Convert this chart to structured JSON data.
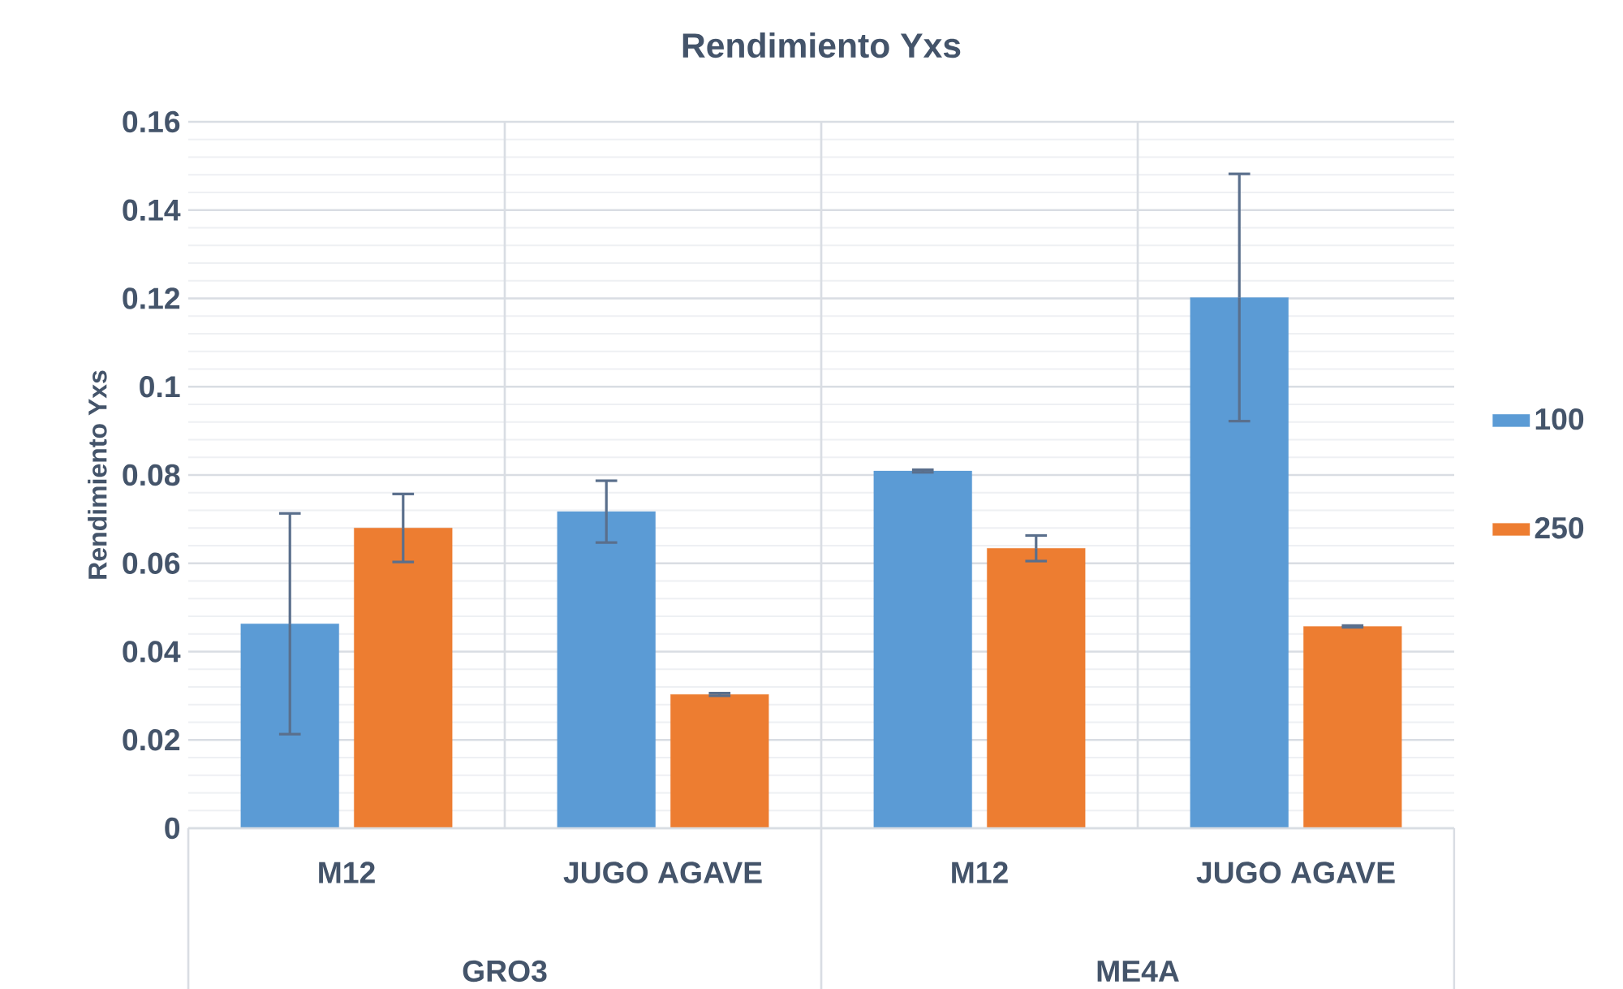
{
  "chart_data": {
    "type": "bar",
    "title": "Rendimiento Yxs",
    "ylabel": "Rendimiento Yxs",
    "categories": [
      "M12",
      "JUGO AGAVE",
      "M12",
      "JUGO AGAVE"
    ],
    "annotations": [
      "GRO3",
      "ME4A"
    ],
    "series": [
      {
        "name": "100",
        "color": "#5b9bd5",
        "values": [
          0.0463,
          0.0717,
          0.0809,
          0.1202
        ],
        "errors": [
          0.025,
          0.007,
          0.0003,
          0.028
        ]
      },
      {
        "name": "250",
        "color": "#ed7d31",
        "values": [
          0.068,
          0.0303,
          0.0634,
          0.0457
        ],
        "errors": [
          0.0077,
          0.0003,
          0.0029,
          0.0002
        ]
      }
    ],
    "ylim": [
      0,
      0.16
    ],
    "yticks": [
      0,
      0.02,
      0.04,
      0.06,
      0.08,
      0.1,
      0.12,
      0.14,
      0.16
    ],
    "grid": true,
    "legend": "right"
  }
}
